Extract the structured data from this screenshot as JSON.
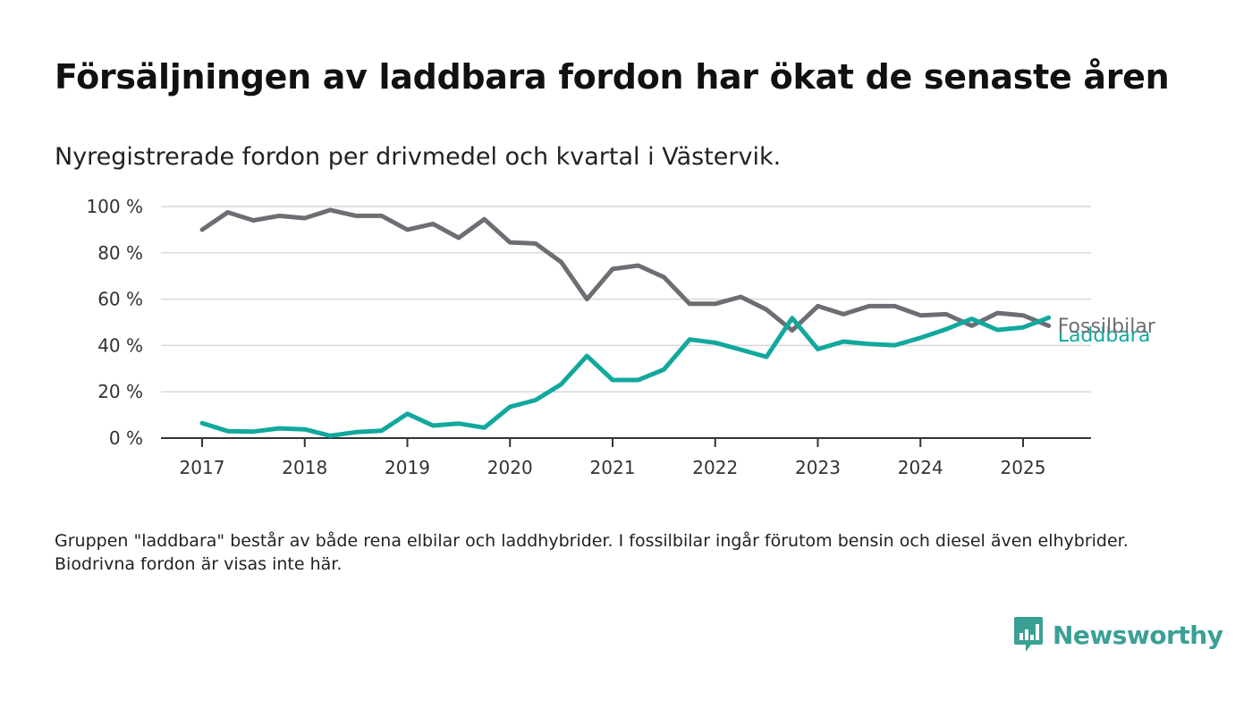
{
  "header": {
    "title": "Försäljningen av laddbara fordon har ökat de senaste åren",
    "subtitle": "Nyregistrerade fordon per drivmedel och kvartal i Västervik."
  },
  "footnote": "Gruppen \"laddbara\" består av både rena elbilar och laddhybrider. I fossilbilar ingår förutom bensin och diesel även elhybrider. Biodrivna fordon är visas inte här.",
  "brand": {
    "name": "Newsworthy",
    "icon": "newsworthy-logo-icon",
    "color": "#3aa095"
  },
  "chart_data": {
    "type": "line",
    "title": "Försäljningen av laddbara fordon har ökat de senaste åren",
    "subtitle": "Nyregistrerade fordon per drivmedel och kvartal i Västervik.",
    "xlabel": "",
    "ylabel": "",
    "x_start_year": 2017,
    "x_step_per_point": 0.25,
    "xlim": [
      2016.6,
      2026.1
    ],
    "x_ticks": [
      2017,
      2018,
      2019,
      2020,
      2021,
      2022,
      2023,
      2024,
      2025
    ],
    "x_tick_labels": [
      "2017",
      "2018",
      "2019",
      "2020",
      "2021",
      "2022",
      "2023",
      "2024",
      "2025"
    ],
    "ylim": [
      0,
      100
    ],
    "y_ticks": [
      0,
      20,
      40,
      60,
      80,
      100
    ],
    "y_tick_labels": [
      "0 %",
      "20 %",
      "40 %",
      "60 %",
      "80 %",
      "100 %"
    ],
    "grid": "horizontal",
    "legend": "direct labels at line ends",
    "series": [
      {
        "name": "Fossilbilar",
        "color": "#6d6e74",
        "values": [
          90,
          97.5,
          94,
          96,
          95,
          98.5,
          96,
          96,
          90,
          92.5,
          86.5,
          94.5,
          84.5,
          84,
          76,
          60,
          73,
          74.5,
          69.5,
          58,
          58,
          61,
          55.5,
          46.5,
          57,
          53.5,
          57,
          57,
          53,
          53.5,
          48.5,
          54,
          53,
          48.5
        ]
      },
      {
        "name": "Laddbara",
        "color": "#12a89d",
        "values": [
          6.5,
          3,
          2.8,
          4.2,
          3.8,
          1,
          2.6,
          3.2,
          10.5,
          5.4,
          6.3,
          4.5,
          13.5,
          16.4,
          23.3,
          35.5,
          25.1,
          25.1,
          29.6,
          42.6,
          41.2,
          38.2,
          35.1,
          51.8,
          38.4,
          41.7,
          40.6,
          40.1,
          43.3,
          47,
          51.5,
          46.7,
          47.8,
          52
        ]
      }
    ]
  }
}
